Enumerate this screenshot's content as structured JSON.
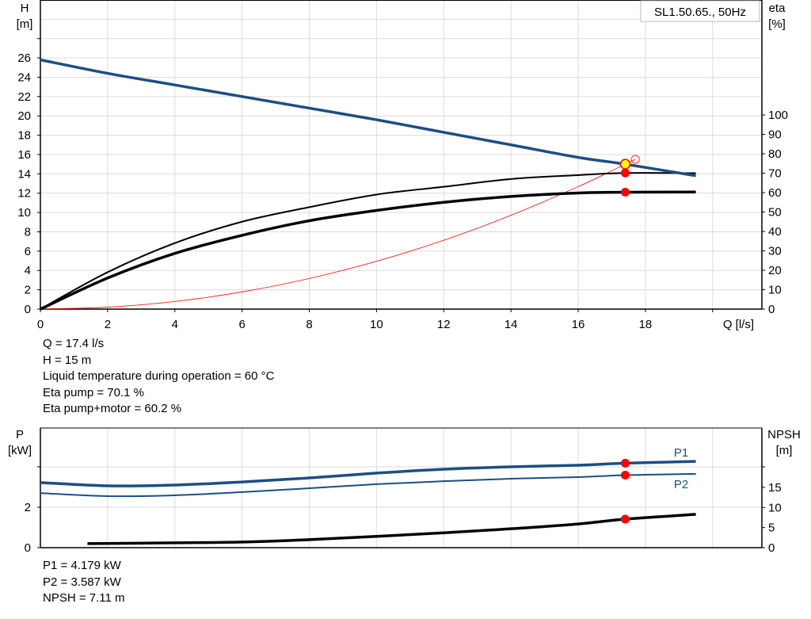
{
  "chart_data": [
    {
      "type": "line",
      "title": "SL1.50.65., 50Hz",
      "xlabel": "Q [l/s]",
      "ylabel_left": "H\n[m]",
      "ylabel_left_lines": [
        "H",
        "[m]"
      ],
      "ylabel_right_lines": [
        "eta",
        "[%]"
      ],
      "xlim": [
        0,
        21
      ],
      "ylim_left": [
        0,
        30
      ],
      "ylim_right": [
        0,
        100
      ],
      "xticks": [
        0,
        2,
        4,
        6,
        8,
        10,
        12,
        14,
        16,
        18
      ],
      "yticks_left": [
        0,
        2,
        4,
        6,
        8,
        10,
        12,
        14,
        16,
        18,
        20,
        22,
        24,
        26
      ],
      "yticks_right": [
        0,
        10,
        20,
        30,
        40,
        50,
        60,
        70,
        80,
        90,
        100
      ],
      "grid": true,
      "series": [
        {
          "key": "pump_head",
          "axis": "left",
          "color": "#1b4f82",
          "x": [
            0,
            2,
            4,
            6,
            8,
            10,
            12,
            14,
            16,
            17.4,
            19.5
          ],
          "y": [
            25.8,
            24.4,
            23.2,
            22.0,
            20.8,
            19.6,
            18.3,
            17.0,
            15.7,
            15.0,
            13.8
          ]
        },
        {
          "key": "eta_pump",
          "axis": "right",
          "color": "#000000",
          "x": [
            0,
            2,
            4,
            6,
            8,
            10,
            12,
            14,
            16,
            17.4,
            19.5
          ],
          "y": [
            0,
            19,
            34,
            45,
            52.5,
            59,
            63,
            67,
            69,
            70.1,
            70
          ]
        },
        {
          "key": "eta_pump_motor",
          "axis": "right",
          "color": "#000000",
          "x": [
            0,
            2,
            4,
            6,
            8,
            10,
            12,
            14,
            16,
            17.4,
            19.5
          ],
          "y": [
            0,
            16,
            28.7,
            38,
            45.5,
            50.8,
            55,
            58,
            59.8,
            60.2,
            60.3
          ]
        },
        {
          "key": "system_curve",
          "axis": "left",
          "color": "#ff0000",
          "x": [
            0,
            2,
            4,
            6,
            8,
            10,
            12,
            14,
            16,
            17.4,
            17.7
          ],
          "y": [
            0,
            0.2,
            0.79,
            1.78,
            3.17,
            4.95,
            7.13,
            9.71,
            12.68,
            15.0,
            15.5
          ]
        }
      ],
      "operating_point": {
        "Q": 17.4,
        "H": 15,
        "eta_pump": 70.1,
        "eta_total": 60.2
      }
    },
    {
      "type": "line",
      "ylabel_left_lines": [
        "P",
        "[kW]"
      ],
      "ylabel_right_lines": [
        "NPSH",
        "[m]"
      ],
      "xlim": [
        0,
        21
      ],
      "ylim_left": [
        0,
        6
      ],
      "ylim_right": [
        0,
        30
      ],
      "yticks_left": [
        0,
        2
      ],
      "yticks_right": [
        0,
        5,
        10,
        15
      ],
      "grid": true,
      "series": [
        {
          "key": "P1",
          "name": "P1",
          "axis": "left",
          "color": "#1b4f82",
          "x": [
            0,
            2,
            4,
            6,
            8,
            10,
            12,
            14,
            16,
            17.4,
            19.5
          ],
          "y": [
            3.22,
            3.06,
            3.1,
            3.25,
            3.45,
            3.69,
            3.88,
            4.0,
            4.08,
            4.179,
            4.27
          ]
        },
        {
          "key": "P2",
          "name": "P2",
          "axis": "left",
          "color": "#1b4f82",
          "x": [
            0,
            2,
            4,
            6,
            8,
            10,
            12,
            14,
            16,
            17.4,
            19.5
          ],
          "y": [
            2.7,
            2.55,
            2.59,
            2.75,
            2.94,
            3.14,
            3.29,
            3.41,
            3.49,
            3.587,
            3.65
          ]
        },
        {
          "key": "NPSH",
          "axis": "right",
          "color": "#000000",
          "x": [
            1.4,
            4,
            6,
            8,
            10,
            12,
            14,
            16,
            17.4,
            19.5
          ],
          "y": [
            1.0,
            1.2,
            1.4,
            2.0,
            2.8,
            3.7,
            4.7,
            5.9,
            7.11,
            8.3
          ]
        }
      ],
      "operating_point": {
        "Q": 17.4,
        "P1": 4.179,
        "P2": 3.587,
        "NPSH": 7.11
      }
    }
  ],
  "info_top": [
    "Q = 17.4 l/s",
    "H = 15 m",
    "Liquid temperature during operation = 60 °C",
    "Eta pump = 70.1 %",
    "Eta pump+motor = 60.2 %"
  ],
  "info_bottom": [
    "P1 = 4.179 kW",
    "P2 = 3.587 kW",
    "NPSH = 7.11 m"
  ]
}
